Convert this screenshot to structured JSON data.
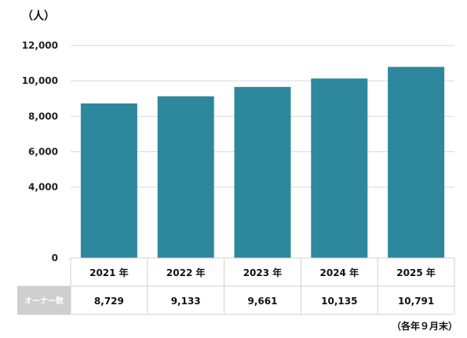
{
  "unit_label": "（人）",
  "footnote": "（各年９月末）",
  "table": {
    "row_label": "オーナー数"
  },
  "colors": {
    "bar": "#2E889D",
    "grid": "#d9d9d9",
    "row_header_bg": "#cfcfcf"
  },
  "chart_data": {
    "type": "bar",
    "title": "",
    "xlabel": "",
    "ylabel": "",
    "categories": [
      "2021 年",
      "2022 年",
      "2023 年",
      "2024 年",
      "2025 年"
    ],
    "values": [
      8729,
      9133,
      9661,
      10135,
      10791
    ],
    "value_labels": [
      "8,729",
      "9,133",
      "9,661",
      "10,135",
      "10,791"
    ],
    "yticks": [
      "0",
      "4,000",
      "6,000",
      "8,000",
      "10,000",
      "12,000"
    ],
    "ytick_values": [
      0,
      4000,
      6000,
      8000,
      10000,
      12000
    ],
    "ylim": [
      0,
      12000
    ],
    "grid": true,
    "legend": "none"
  }
}
